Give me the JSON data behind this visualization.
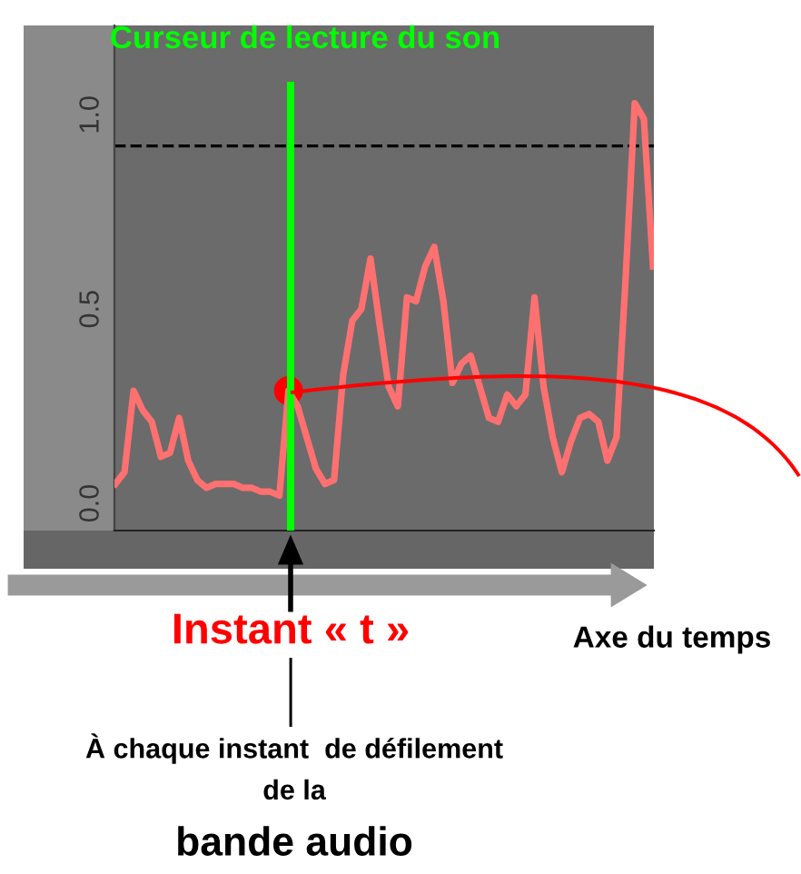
{
  "chart_data": {
    "type": "line",
    "categories": [
      null,
      null,
      null,
      null,
      null,
      null,
      null,
      null,
      null,
      null,
      null,
      null,
      null,
      null,
      null,
      null,
      null,
      null,
      null,
      null,
      null,
      null,
      null,
      null,
      null,
      null,
      null,
      null,
      null,
      null,
      null,
      null,
      null,
      null,
      null,
      null,
      null,
      null,
      null,
      null,
      null,
      null,
      null,
      null,
      null,
      null,
      null,
      null,
      null,
      null,
      null,
      null,
      null,
      null,
      null,
      null,
      null,
      null,
      null,
      null
    ],
    "series": [
      {
        "color": "#ff7070",
        "values": [
          0.05,
          0.08,
          0.29,
          0.24,
          0.21,
          0.12,
          0.13,
          0.22,
          0.11,
          0.06,
          0.04,
          0.05,
          0.05,
          0.05,
          0.04,
          0.04,
          0.03,
          0.03,
          0.02,
          0.29,
          0.25,
          0.17,
          0.09,
          0.05,
          0.06,
          0.33,
          0.47,
          0.5,
          0.63,
          0.46,
          0.3,
          0.25,
          0.53,
          0.52,
          0.61,
          0.66,
          0.52,
          0.31,
          0.36,
          0.38,
          0.3,
          0.22,
          0.21,
          0.28,
          0.25,
          0.28,
          0.53,
          0.3,
          0.17,
          0.08,
          0.16,
          0.22,
          0.23,
          0.21,
          0.11,
          0.17,
          0.58,
          1.03,
          0.99,
          0.61
        ]
      },
      {
        "type": "scatter",
        "color": "#ff0000",
        "values": [
          null,
          null,
          null,
          null,
          null,
          null,
          null,
          null,
          null,
          null,
          null,
          null,
          null,
          null,
          null,
          null,
          null,
          null,
          null,
          0.29,
          null,
          null,
          null,
          null,
          null,
          null,
          null,
          null,
          null,
          null,
          null,
          null,
          null,
          null,
          null,
          null,
          null,
          null,
          null,
          null,
          null,
          null,
          null,
          null,
          null,
          null,
          null,
          null,
          null,
          null,
          null,
          null,
          null,
          null,
          null,
          null,
          null,
          null,
          null,
          null
        ]
      }
    ],
    "ylim": [
      -0.07,
      1.23
    ],
    "yticks": [
      {
        "value": 0,
        "label": "0.0"
      },
      {
        "value": 0.5,
        "label": "0.5"
      },
      {
        "value": 1,
        "label": "1.0"
      }
    ],
    "tick_labels": "y",
    "ref_lines": [
      {
        "axis": "y",
        "value": 0.92,
        "color": "#000000",
        "line_style": "dashed"
      }
    ],
    "annotations": [
      "Curseur de lecture du son",
      "Instant « t »",
      "Axe du temps",
      "À chaque instant  de défilement",
      "de la",
      "bande audio"
    ]
  }
}
